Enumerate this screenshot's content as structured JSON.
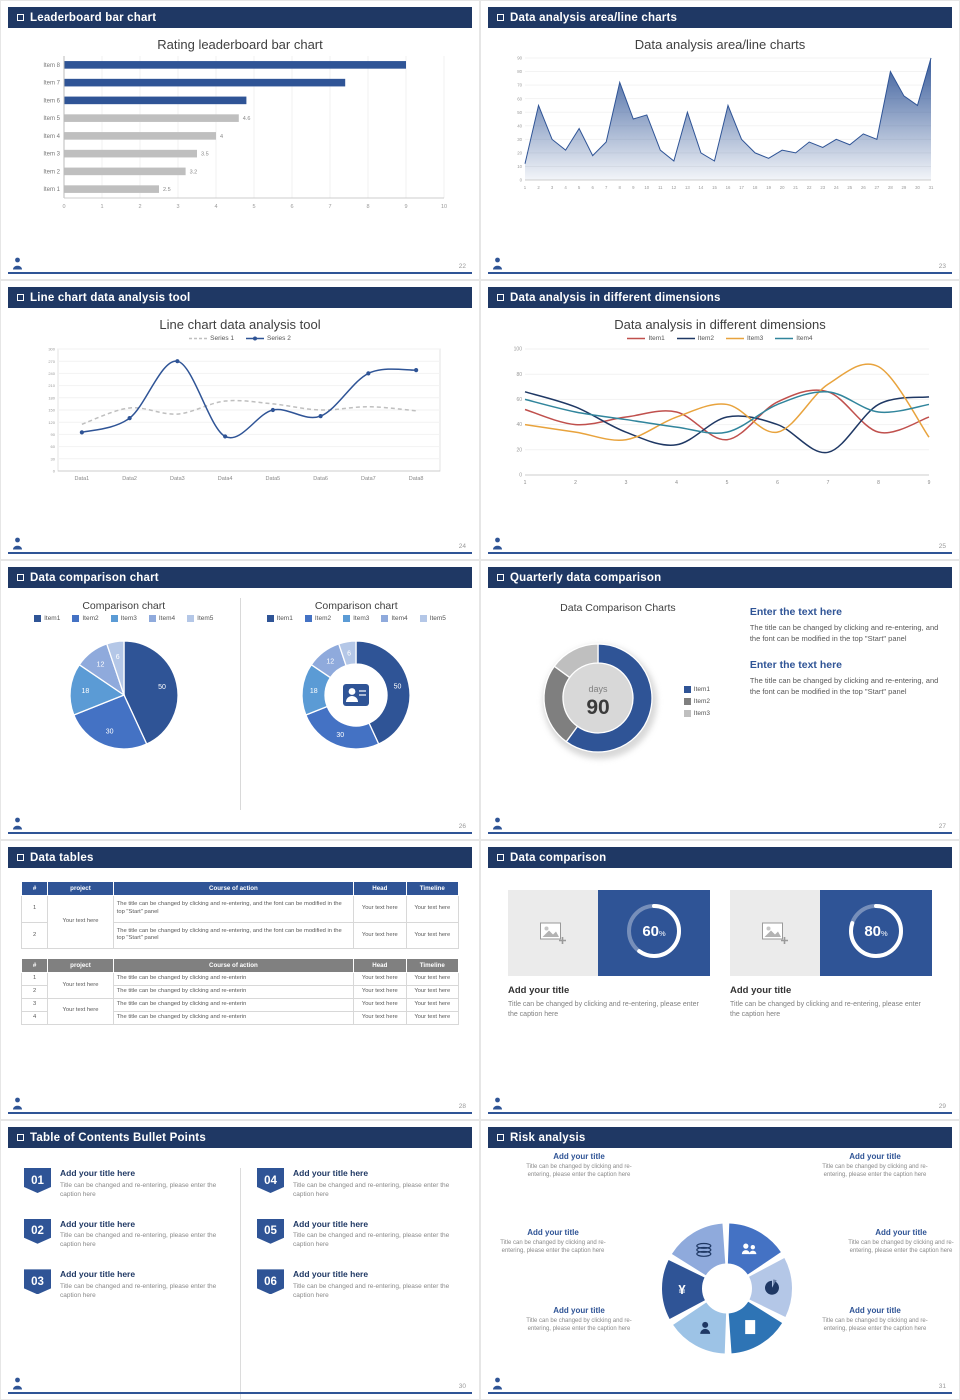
{
  "theme": {
    "header_bg": "#1f3864",
    "accent": "#2f5496",
    "gray_bar": "#bfbfbf",
    "footer_line": "#2f5496"
  },
  "icons": {
    "header_bullet": "outlined-square",
    "money_glyph": "¥"
  },
  "slides": {
    "s22": {
      "header": "Leaderboard bar chart",
      "page": "22",
      "title": "Rating leaderboard bar chart",
      "chart_data": {
        "type": "bar",
        "orientation": "horizontal",
        "categories": [
          "Item 8",
          "Item 7",
          "Item 6",
          "Item 5",
          "Item 4",
          "Item 3",
          "Item 2",
          "Item 1"
        ],
        "values": [
          9,
          7.4,
          4.8,
          4.6,
          4,
          3.5,
          3.2,
          2.5
        ],
        "colors": [
          "#2f5496",
          "#2f5496",
          "#2f5496",
          "#bfbfbf",
          "#bfbfbf",
          "#bfbfbf",
          "#bfbfbf",
          "#bfbfbf"
        ],
        "data_labels": [
          "",
          "",
          "",
          "4.6",
          "4",
          "3.5",
          "3.2",
          "2.5"
        ],
        "xlim": [
          0,
          10
        ],
        "xticks": [
          0,
          1,
          2,
          3,
          4,
          5,
          6,
          7,
          8,
          9,
          10
        ]
      }
    },
    "s23": {
      "header": "Data analysis area/line charts",
      "page": "23",
      "title": "Data analysis area/line charts",
      "chart_data": {
        "type": "area",
        "color": "#2f5496",
        "ylim": [
          0,
          90
        ],
        "ytick_step": 10,
        "x_start": 1,
        "values": [
          12,
          55,
          30,
          22,
          38,
          18,
          28,
          72,
          45,
          48,
          22,
          14,
          50,
          20,
          14,
          55,
          30,
          20,
          16,
          22,
          20,
          28,
          24,
          30,
          26,
          34,
          30,
          80,
          62,
          55,
          90
        ]
      }
    },
    "s24": {
      "header": "Line chart data analysis tool",
      "page": "24",
      "title": "Line chart data analysis tool",
      "chart_data": {
        "type": "line",
        "ylim": [
          0,
          300
        ],
        "ytick_step": 30,
        "categories": [
          "Data1",
          "Data2",
          "Data3",
          "Data4",
          "Data5",
          "Data6",
          "Data7",
          "Data8"
        ],
        "series": [
          {
            "name": "Series 1",
            "color": "#bfbfbf",
            "dash": true,
            "values": [
              115,
              155,
              140,
              172,
              165,
              150,
              158,
              148
            ]
          },
          {
            "name": "Series 2",
            "color": "#2f5496",
            "markers": true,
            "values": [
              95,
              130,
              270,
              85,
              150,
              135,
              240,
              248
            ]
          }
        ]
      }
    },
    "s25": {
      "header": "Data analysis in different dimensions",
      "page": "25",
      "title": "Data analysis in different dimensions",
      "chart_data": {
        "type": "line",
        "ylim": [
          0,
          100
        ],
        "ytick_step": 20,
        "categories": [
          "1",
          "2",
          "3",
          "4",
          "5",
          "6",
          "7",
          "8",
          "9"
        ],
        "series": [
          {
            "name": "Item1",
            "color": "#c0504d",
            "values": [
              52,
              40,
              46,
              50,
              28,
              58,
              66,
              34,
              46
            ]
          },
          {
            "name": "Item2",
            "color": "#1f3864",
            "values": [
              66,
              54,
              34,
              24,
              46,
              40,
              18,
              56,
              62
            ]
          },
          {
            "name": "Item3",
            "color": "#e8a33d",
            "values": [
              40,
              34,
              28,
              46,
              56,
              34,
              72,
              86,
              30
            ]
          },
          {
            "name": "Item4",
            "color": "#31859c",
            "values": [
              60,
              50,
              44,
              38,
              34,
              56,
              66,
              50,
              56
            ]
          }
        ]
      }
    },
    "s26": {
      "header": "Data comparison chart",
      "page": "26",
      "left": {
        "title": "Comparison chart",
        "chart_data": {
          "type": "pie",
          "labels": [
            "Item1",
            "Item2",
            "Item3",
            "Item4",
            "Item5"
          ],
          "values": [
            50,
            30,
            18,
            12,
            6
          ],
          "colors": [
            "#2f5496",
            "#4472c4",
            "#5b9bd5",
            "#8faadc",
            "#b4c7e7"
          ]
        }
      },
      "right": {
        "title": "Comparison chart",
        "chart_data": {
          "type": "donut",
          "labels": [
            "Item1",
            "Item2",
            "Item3",
            "Item4",
            "Item5"
          ],
          "values": [
            50,
            30,
            18,
            12,
            6
          ],
          "colors": [
            "#2f5496",
            "#4472c4",
            "#5b9bd5",
            "#8faadc",
            "#b4c7e7"
          ],
          "center_icon": "person-card-icon"
        }
      }
    },
    "s27": {
      "header": "Quarterly data comparison",
      "page": "27",
      "title": "Data Comparison Charts",
      "chart_data": {
        "type": "donut",
        "labels": [
          "Item1",
          "Item2",
          "Item3"
        ],
        "values": [
          60,
          25,
          15
        ],
        "colors": [
          "#2f5496",
          "#7f7f7f",
          "#bfbfbf"
        ],
        "center": [
          "days",
          "90"
        ]
      },
      "blocks": [
        {
          "heading": "Enter the text here",
          "body": "The title can be changed by clicking and re-entering, and the font can be modified in the top \"Start\" panel"
        },
        {
          "heading": "Enter the text here",
          "body": "The title can be changed by clicking and re-entering, and the font can be modified in the top \"Start\" panel"
        }
      ]
    },
    "s28": {
      "header": "Data tables",
      "page": "28",
      "tables": [
        {
          "cls": "t1",
          "header_bg": "#2f5496",
          "columns": [
            "#",
            "project",
            "Course of action",
            "Head",
            "Timeline"
          ],
          "col_widths": [
            "6%",
            "15%",
            "55%",
            "12%",
            "12%"
          ],
          "rows": [
            [
              {
                "text": "1"
              },
              {
                "text": "Your text here",
                "span": 2
              },
              {
                "text": "The title can be changed by clicking and re-entering, and the font can be modified in the top \"Start\" panel",
                "cls": "left"
              },
              {
                "text": "Your text here"
              },
              {
                "text": "Your text here"
              }
            ],
            [
              {
                "text": "2"
              },
              {
                "text": "The title can be changed by clicking and re-entering, and the font can be modified in the top \"Start\" panel",
                "cls": "left"
              },
              {
                "text": "Your text here"
              },
              {
                "text": "Your text here"
              }
            ]
          ]
        },
        {
          "cls": "t2",
          "header_bg": "#808080",
          "columns": [
            "#",
            "project",
            "Course of action",
            "Head",
            "Timeline"
          ],
          "col_widths": [
            "6%",
            "15%",
            "55%",
            "12%",
            "12%"
          ],
          "rows": [
            [
              {
                "text": "1"
              },
              {
                "text": "Your text here",
                "span": 2
              },
              {
                "text": "The title can be changed by clicking and re-enterin",
                "cls": "left"
              },
              {
                "text": "Your text here"
              },
              {
                "text": "Your text here"
              }
            ],
            [
              {
                "text": "2"
              },
              {
                "text": "The title can be changed by clicking and re-enterin",
                "cls": "left"
              },
              {
                "text": "Your text here"
              },
              {
                "text": "Your text here"
              }
            ],
            [
              {
                "text": "3"
              },
              {
                "text": "Your text here",
                "span": 2
              },
              {
                "text": "The title can be changed by clicking and re-enterin",
                "cls": "left"
              },
              {
                "text": "Your text here"
              },
              {
                "text": "Your text here"
              }
            ],
            [
              {
                "text": "4"
              },
              {
                "text": "The title can be changed by clicking and re-enterin",
                "cls": "left"
              },
              {
                "text": "Your text here"
              },
              {
                "text": "Your text here"
              }
            ]
          ]
        }
      ]
    },
    "s29": {
      "header": "Data comparison",
      "page": "29",
      "cards": [
        {
          "percent": 60,
          "title": "Add your title",
          "caption": "Title can be changed by clicking and re-entering, please enter the caption here"
        },
        {
          "percent": 80,
          "title": "Add your title",
          "caption": "Title can be changed by clicking and re-entering, please enter the caption here"
        }
      ]
    },
    "s30": {
      "header": "Table of Contents Bullet Points",
      "page": "30",
      "items": [
        {
          "number": "01",
          "title": "Add your title here",
          "caption": "Title can be changed and re-entering, please enter the caption here"
        },
        {
          "number": "02",
          "title": "Add your title here",
          "caption": "Title can be changed and re-entering, please enter the caption here"
        },
        {
          "number": "03",
          "title": "Add your title here",
          "caption": "Title can be changed and re-entering, please enter the caption here"
        },
        {
          "number": "04",
          "title": "Add your title here",
          "caption": "Title can be changed and re-entering, please enter the caption here"
        },
        {
          "number": "05",
          "title": "Add your title here",
          "caption": "Title can be changed and re-entering, please enter the caption here"
        },
        {
          "number": "06",
          "title": "Add your title here",
          "caption": "Title can be changed and re-entering, please enter the caption here"
        }
      ]
    },
    "s31": {
      "header": "Risk analysis",
      "page": "31",
      "blocks": [
        {
          "title": "Add your title",
          "caption": "Title can be changed by clicking and re-entering, please enter the caption here"
        },
        {
          "title": "Add your title",
          "caption": "Title can be changed by clicking and re-entering, please enter the caption here"
        },
        {
          "title": "Add your title",
          "caption": "Title can be changed by clicking and re-entering, please enter the caption here"
        },
        {
          "title": "Add your title",
          "caption": "Title can be changed by clicking and re-entering, please enter the caption here"
        },
        {
          "title": "Add your title",
          "caption": "Title can be changed by clicking and re-entering, please enter the caption here"
        },
        {
          "title": "Add your title",
          "caption": "Title can be changed by clicking and re-entering, please enter the caption here"
        }
      ],
      "wheel": {
        "segments": [
          {
            "icon": "moneybag-icon",
            "color": "#2f5496",
            "dark": true
          },
          {
            "icon": "coins-icon",
            "color": "#8faadc"
          },
          {
            "icon": "users-icon",
            "color": "#4472c4",
            "dark": true
          },
          {
            "icon": "pie-icon",
            "color": "#b4c7e7"
          },
          {
            "icon": "building-icon",
            "color": "#2e74b5",
            "dark": true
          },
          {
            "icon": "user-icon",
            "color": "#9dc3e6"
          }
        ]
      }
    }
  }
}
